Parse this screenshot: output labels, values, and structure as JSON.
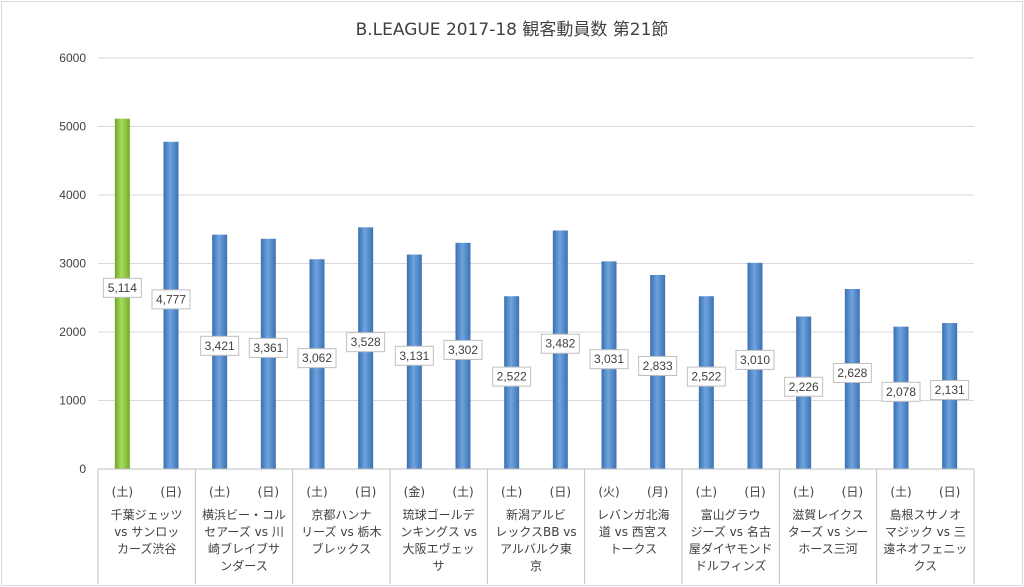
{
  "chart_data": {
    "type": "bar",
    "title": "B.LEAGUE 2017-18 観客動員数 第21節",
    "ylim": [
      0,
      6000
    ],
    "yticks": [
      0,
      1000,
      2000,
      3000,
      4000,
      5000,
      6000
    ],
    "grid": true,
    "legend": "none",
    "colors": {
      "highlight": "#8cc63f",
      "default": "#4f86c6",
      "grid": "#d9d9d9",
      "axis": "#bfbfbf"
    },
    "games": [
      {
        "matchup": [
          "千葉ジェッツ",
          "vs サンロッ",
          "カーズ渋谷"
        ],
        "bars": [
          {
            "day": "(土)",
            "value": 5114,
            "label": "5,114",
            "highlight": true
          },
          {
            "day": "(日)",
            "value": 4777,
            "label": "4,777"
          }
        ]
      },
      {
        "matchup": [
          "横浜ビー・コル",
          "セアーズ vs 川",
          "崎ブレイブサ",
          "ンダース"
        ],
        "bars": [
          {
            "day": "(土)",
            "value": 3421,
            "label": "3,421"
          },
          {
            "day": "(日)",
            "value": 3361,
            "label": "3,361"
          }
        ]
      },
      {
        "matchup": [
          "京都ハンナ",
          "リーズ vs 栃木",
          "ブレックス"
        ],
        "bars": [
          {
            "day": "(土)",
            "value": 3062,
            "label": "3,062"
          },
          {
            "day": "(日)",
            "value": 3528,
            "label": "3,528"
          }
        ]
      },
      {
        "matchup": [
          "琉球ゴールデ",
          "ンキングス vs",
          "大阪エヴェッ",
          "サ"
        ],
        "bars": [
          {
            "day": "(金)",
            "value": 3131,
            "label": "3,131"
          },
          {
            "day": "(土)",
            "value": 3302,
            "label": "3,302"
          }
        ]
      },
      {
        "matchup": [
          "新潟アルビ",
          "レックスBB vs",
          "アルバルク東",
          "京"
        ],
        "bars": [
          {
            "day": "(土)",
            "value": 2522,
            "label": "2,522"
          },
          {
            "day": "(日)",
            "value": 3482,
            "label": "3,482"
          }
        ]
      },
      {
        "matchup": [
          "レバンガ北海",
          "道 vs 西宮ス",
          "トークス"
        ],
        "bars": [
          {
            "day": "(火)",
            "value": 3031,
            "label": "3,031"
          },
          {
            "day": "(月)",
            "value": 2833,
            "label": "2,833"
          }
        ]
      },
      {
        "matchup": [
          "富山グラウ",
          "ジーズ vs 名古",
          "屋ダイヤモンド",
          "ドルフィンズ"
        ],
        "bars": [
          {
            "day": "(土)",
            "value": 2522,
            "label": "2,522"
          },
          {
            "day": "(日)",
            "value": 3010,
            "label": "3,010"
          }
        ]
      },
      {
        "matchup": [
          "滋賀レイクス",
          "ターズ vs シー",
          "ホース三河"
        ],
        "bars": [
          {
            "day": "(土)",
            "value": 2226,
            "label": "2,226"
          },
          {
            "day": "(日)",
            "value": 2628,
            "label": "2,628"
          }
        ]
      },
      {
        "matchup": [
          "島根スサノオ",
          "マジック vs 三",
          "遠ネオフェニッ",
          "クス"
        ],
        "bars": [
          {
            "day": "(土)",
            "value": 2078,
            "label": "2,078"
          },
          {
            "day": "(日)",
            "value": 2131,
            "label": "2,131"
          }
        ]
      }
    ]
  }
}
